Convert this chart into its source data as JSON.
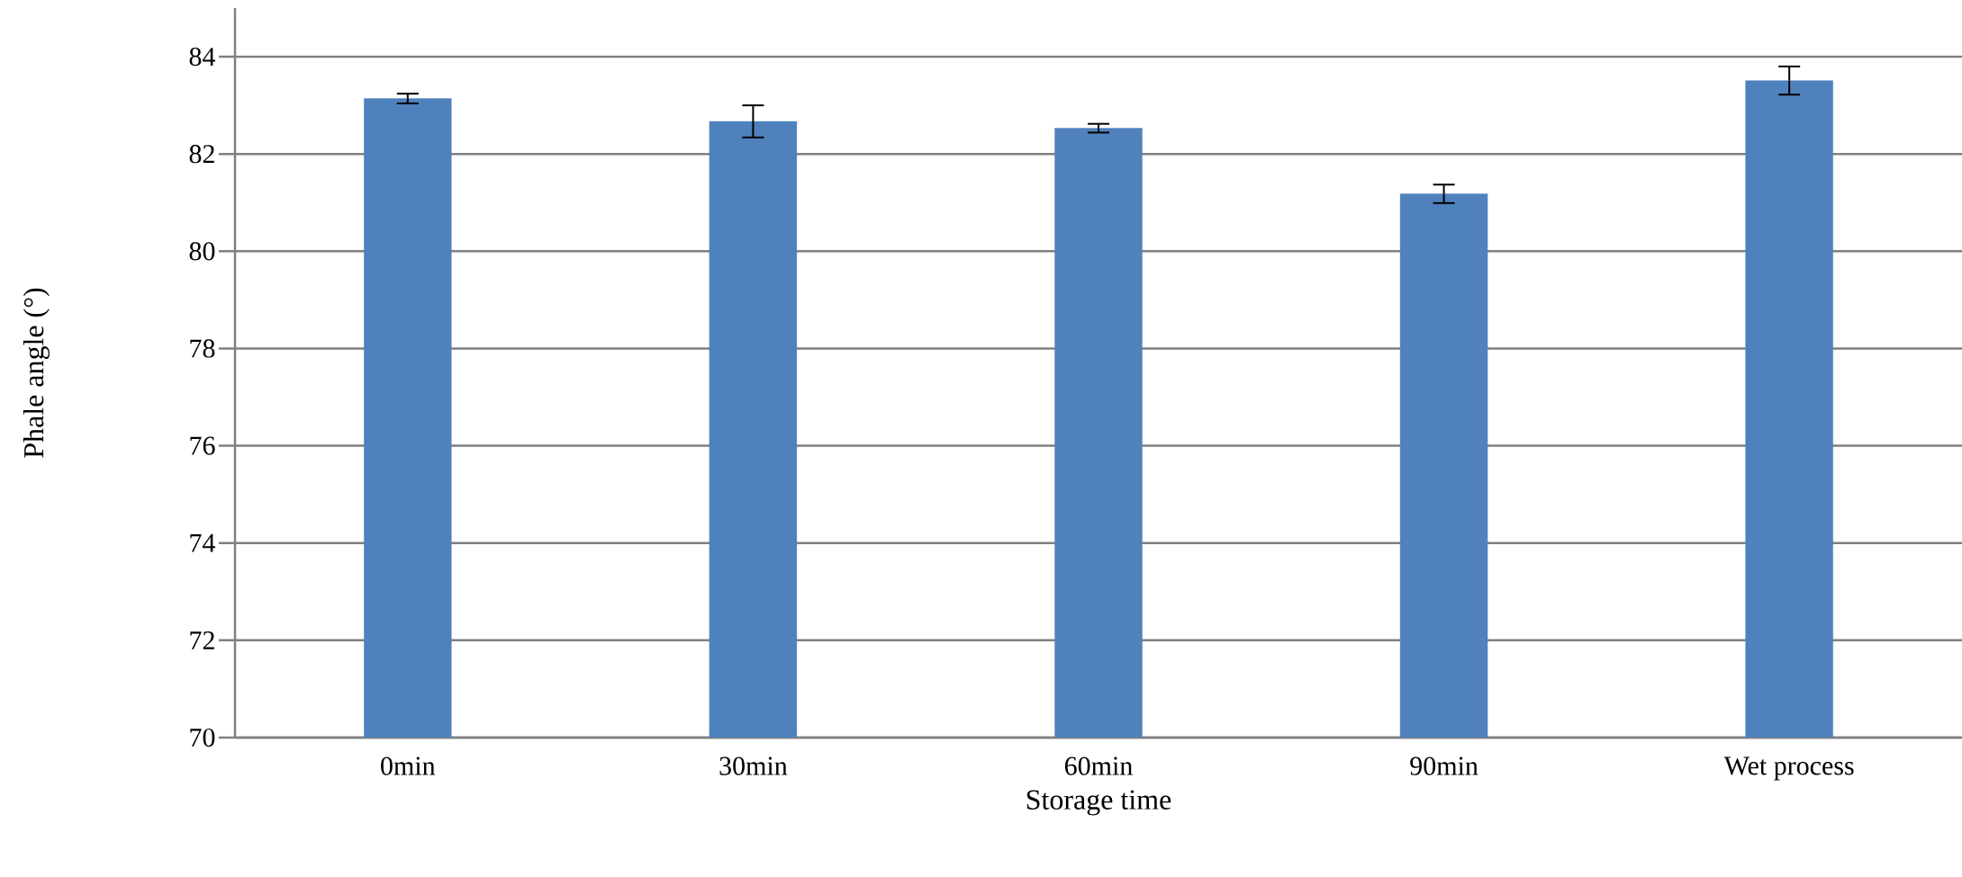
{
  "chart_data": {
    "type": "bar",
    "xlabel": "Storage time",
    "ylabel": "Phale angle (°)",
    "categories": [
      "0min",
      "30min",
      "60min",
      "90min",
      "Wet process"
    ],
    "values": [
      83.14,
      82.67,
      82.53,
      81.18,
      83.51
    ],
    "errors": [
      0.1,
      0.33,
      0.09,
      0.19,
      0.29
    ],
    "color": "#4f81bd",
    "ylim": [
      70,
      85
    ],
    "yticks": [
      70,
      72,
      74,
      76,
      78,
      80,
      82,
      84
    ],
    "grid": "y"
  }
}
